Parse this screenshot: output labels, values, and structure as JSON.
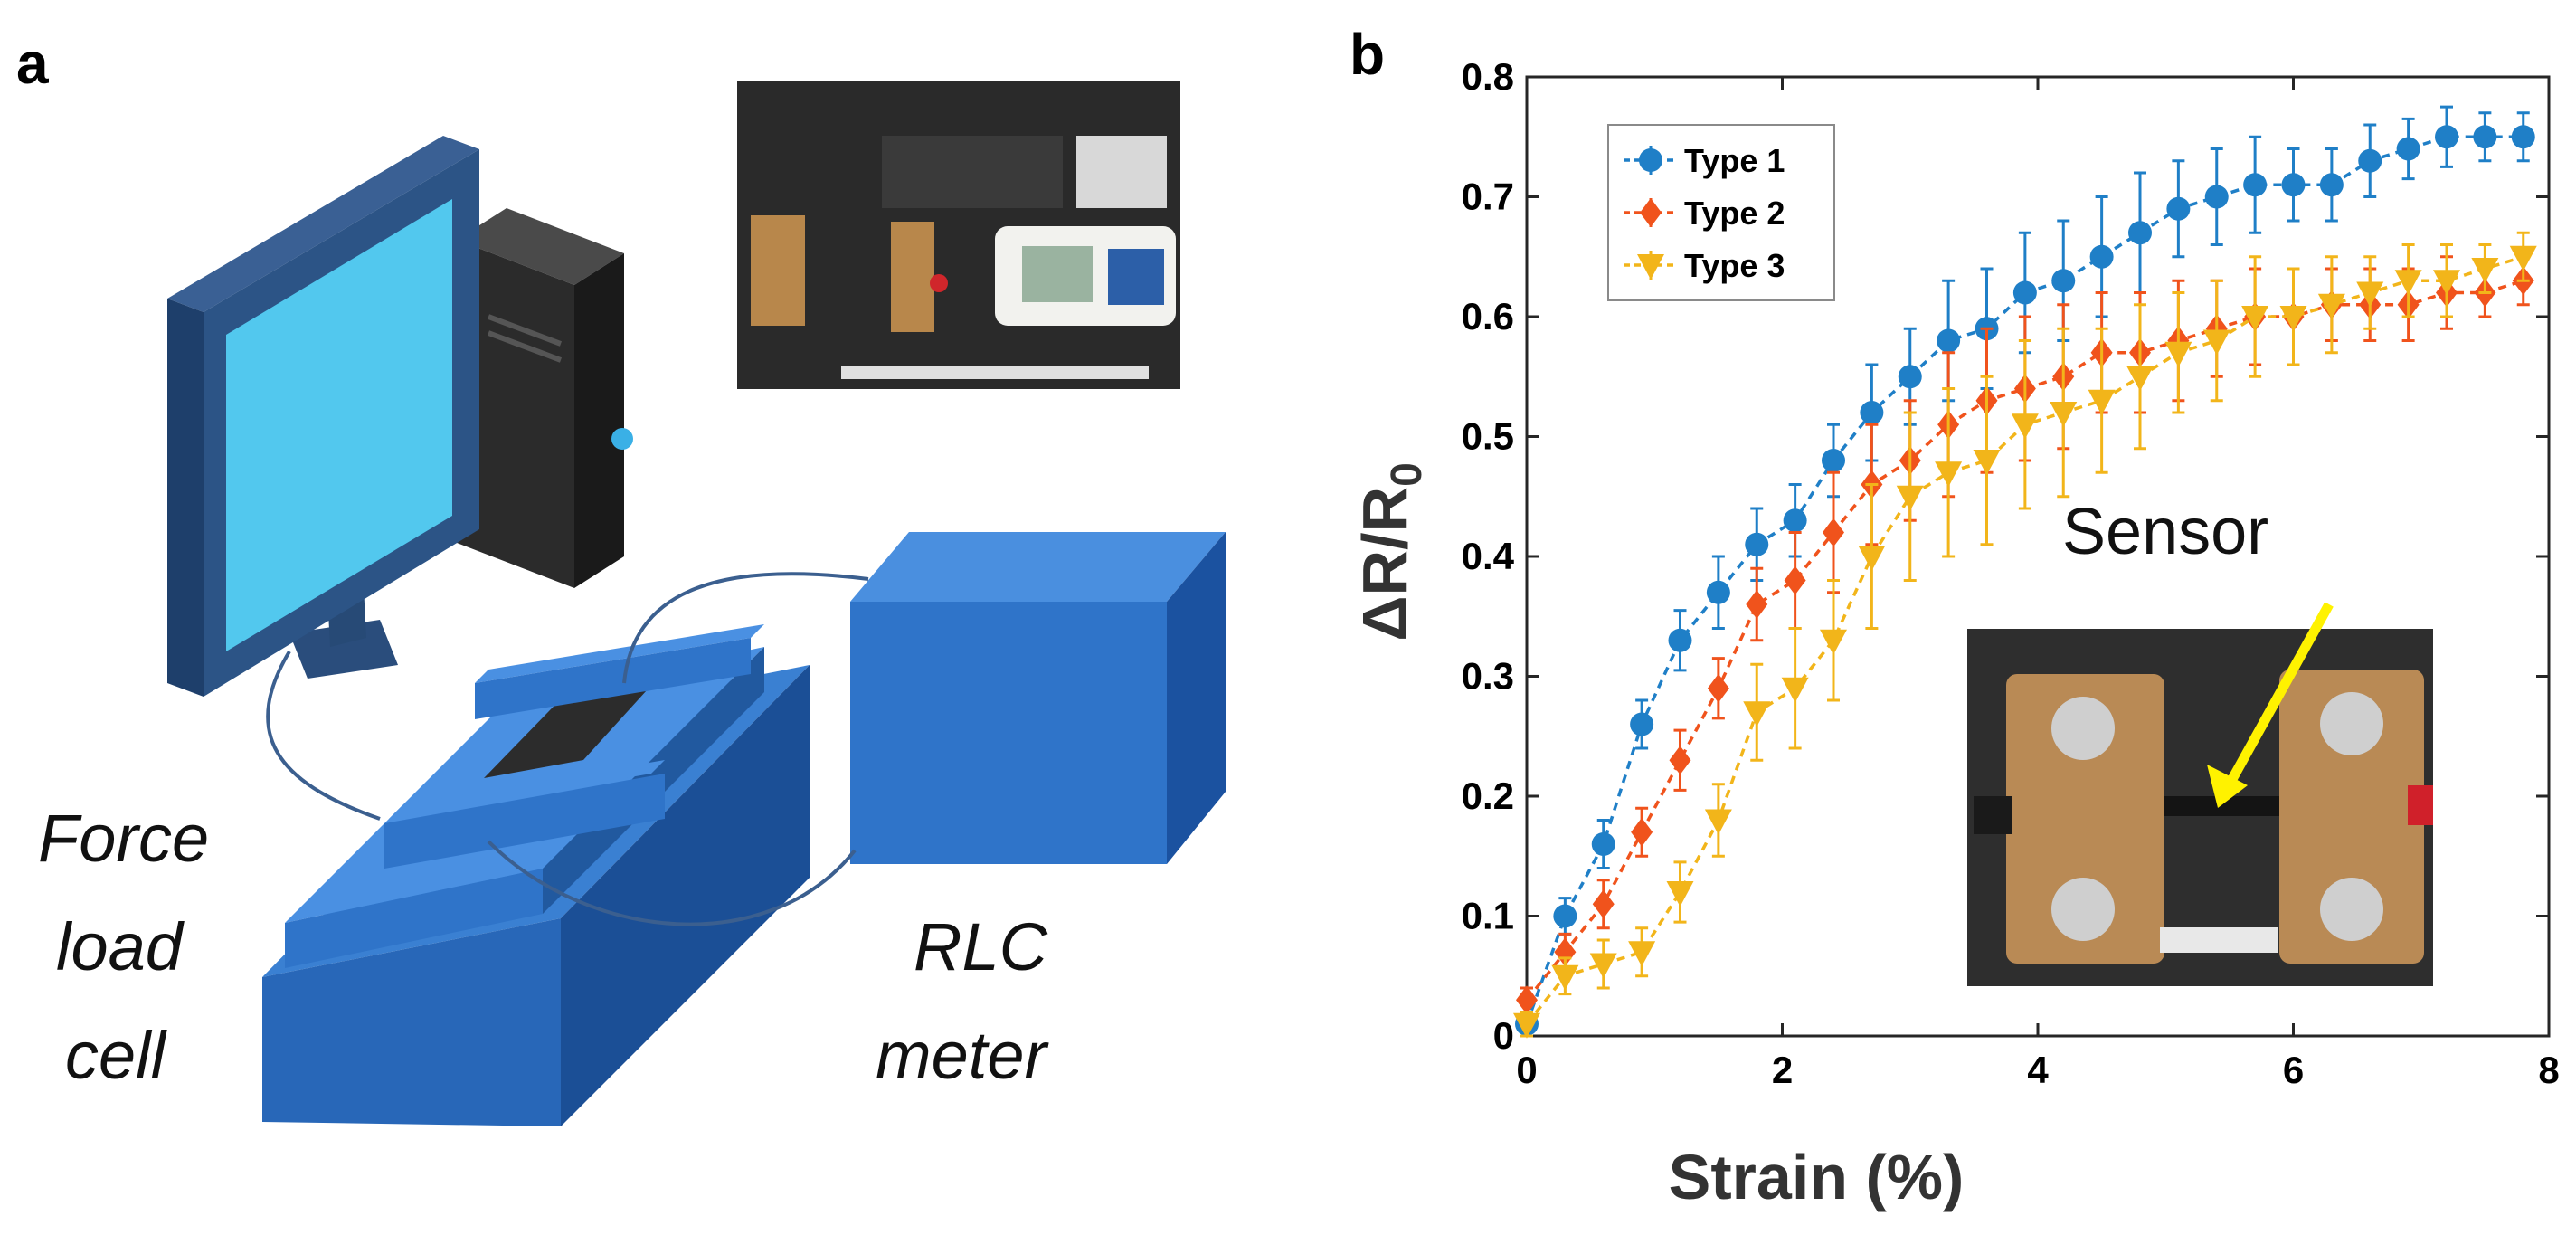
{
  "panel_a": {
    "letter": "a",
    "labels": {
      "force_load_cell": [
        "Force",
        "load",
        "cell"
      ],
      "rlc_meter": [
        "RLC",
        "meter"
      ]
    }
  },
  "panel_b": {
    "letter": "b",
    "inset_label": "Sensor"
  },
  "colors": {
    "type1": "#1f7fc7",
    "type2": "#f0531c",
    "type3": "#f2b51a",
    "device_blue": "#2f74c9",
    "screen": "#52c8ee"
  },
  "chart_data": {
    "type": "line",
    "title": "",
    "xlabel": "Strain (%)",
    "ylabel": "ΔR/R0",
    "xlim": [
      0,
      8
    ],
    "ylim": [
      0,
      0.8
    ],
    "xticks": [
      "0",
      "2",
      "4",
      "6",
      "8"
    ],
    "yticks": [
      "0",
      "0.1",
      "0.2",
      "0.3",
      "0.4",
      "0.5",
      "0.6",
      "0.7",
      "0.8"
    ],
    "grid": false,
    "legend_position": "top-left",
    "series": [
      {
        "name": "Type 1",
        "marker": "circle",
        "x": [
          0,
          0.3,
          0.6,
          0.9,
          1.2,
          1.5,
          1.8,
          2.1,
          2.4,
          2.7,
          3.0,
          3.3,
          3.6,
          3.9,
          4.2,
          4.5,
          4.8,
          5.1,
          5.4,
          5.7,
          6.0,
          6.3,
          6.6,
          6.9,
          7.2,
          7.5,
          7.8
        ],
        "y": [
          0.01,
          0.1,
          0.16,
          0.26,
          0.33,
          0.37,
          0.41,
          0.43,
          0.48,
          0.52,
          0.55,
          0.58,
          0.59,
          0.62,
          0.63,
          0.65,
          0.67,
          0.69,
          0.7,
          0.71,
          0.71,
          0.71,
          0.73,
          0.74,
          0.75,
          0.75,
          0.75
        ],
        "err": [
          0.01,
          0.015,
          0.02,
          0.02,
          0.025,
          0.03,
          0.03,
          0.03,
          0.03,
          0.04,
          0.04,
          0.05,
          0.05,
          0.05,
          0.05,
          0.05,
          0.05,
          0.04,
          0.04,
          0.04,
          0.03,
          0.03,
          0.03,
          0.025,
          0.025,
          0.02,
          0.02
        ]
      },
      {
        "name": "Type 2",
        "marker": "diamond",
        "x": [
          0,
          0.3,
          0.6,
          0.9,
          1.2,
          1.5,
          1.8,
          2.1,
          2.4,
          2.7,
          3.0,
          3.3,
          3.6,
          3.9,
          4.2,
          4.5,
          4.8,
          5.1,
          5.4,
          5.7,
          6.0,
          6.3,
          6.6,
          6.9,
          7.2,
          7.5,
          7.8
        ],
        "y": [
          0.03,
          0.07,
          0.11,
          0.17,
          0.23,
          0.29,
          0.36,
          0.38,
          0.42,
          0.46,
          0.48,
          0.51,
          0.53,
          0.54,
          0.55,
          0.57,
          0.57,
          0.58,
          0.59,
          0.6,
          0.6,
          0.61,
          0.61,
          0.61,
          0.62,
          0.62,
          0.63
        ],
        "err": [
          0.01,
          0.015,
          0.02,
          0.02,
          0.025,
          0.025,
          0.03,
          0.04,
          0.05,
          0.05,
          0.05,
          0.06,
          0.06,
          0.06,
          0.06,
          0.05,
          0.05,
          0.05,
          0.04,
          0.04,
          0.04,
          0.03,
          0.03,
          0.03,
          0.03,
          0.02,
          0.02
        ]
      },
      {
        "name": "Type 3",
        "marker": "triangle-down",
        "x": [
          0,
          0.3,
          0.6,
          0.9,
          1.2,
          1.5,
          1.8,
          2.1,
          2.4,
          2.7,
          3.0,
          3.3,
          3.6,
          3.9,
          4.2,
          4.5,
          4.8,
          5.1,
          5.4,
          5.7,
          6.0,
          6.3,
          6.6,
          6.9,
          7.2,
          7.5,
          7.8
        ],
        "y": [
          0.01,
          0.05,
          0.06,
          0.07,
          0.12,
          0.18,
          0.27,
          0.29,
          0.33,
          0.4,
          0.45,
          0.47,
          0.48,
          0.51,
          0.52,
          0.53,
          0.55,
          0.57,
          0.58,
          0.6,
          0.6,
          0.61,
          0.62,
          0.63,
          0.63,
          0.64,
          0.65
        ],
        "err": [
          0.01,
          0.015,
          0.02,
          0.02,
          0.025,
          0.03,
          0.04,
          0.05,
          0.05,
          0.06,
          0.07,
          0.07,
          0.07,
          0.07,
          0.07,
          0.06,
          0.06,
          0.05,
          0.05,
          0.05,
          0.04,
          0.04,
          0.03,
          0.03,
          0.03,
          0.02,
          0.02
        ]
      }
    ]
  }
}
